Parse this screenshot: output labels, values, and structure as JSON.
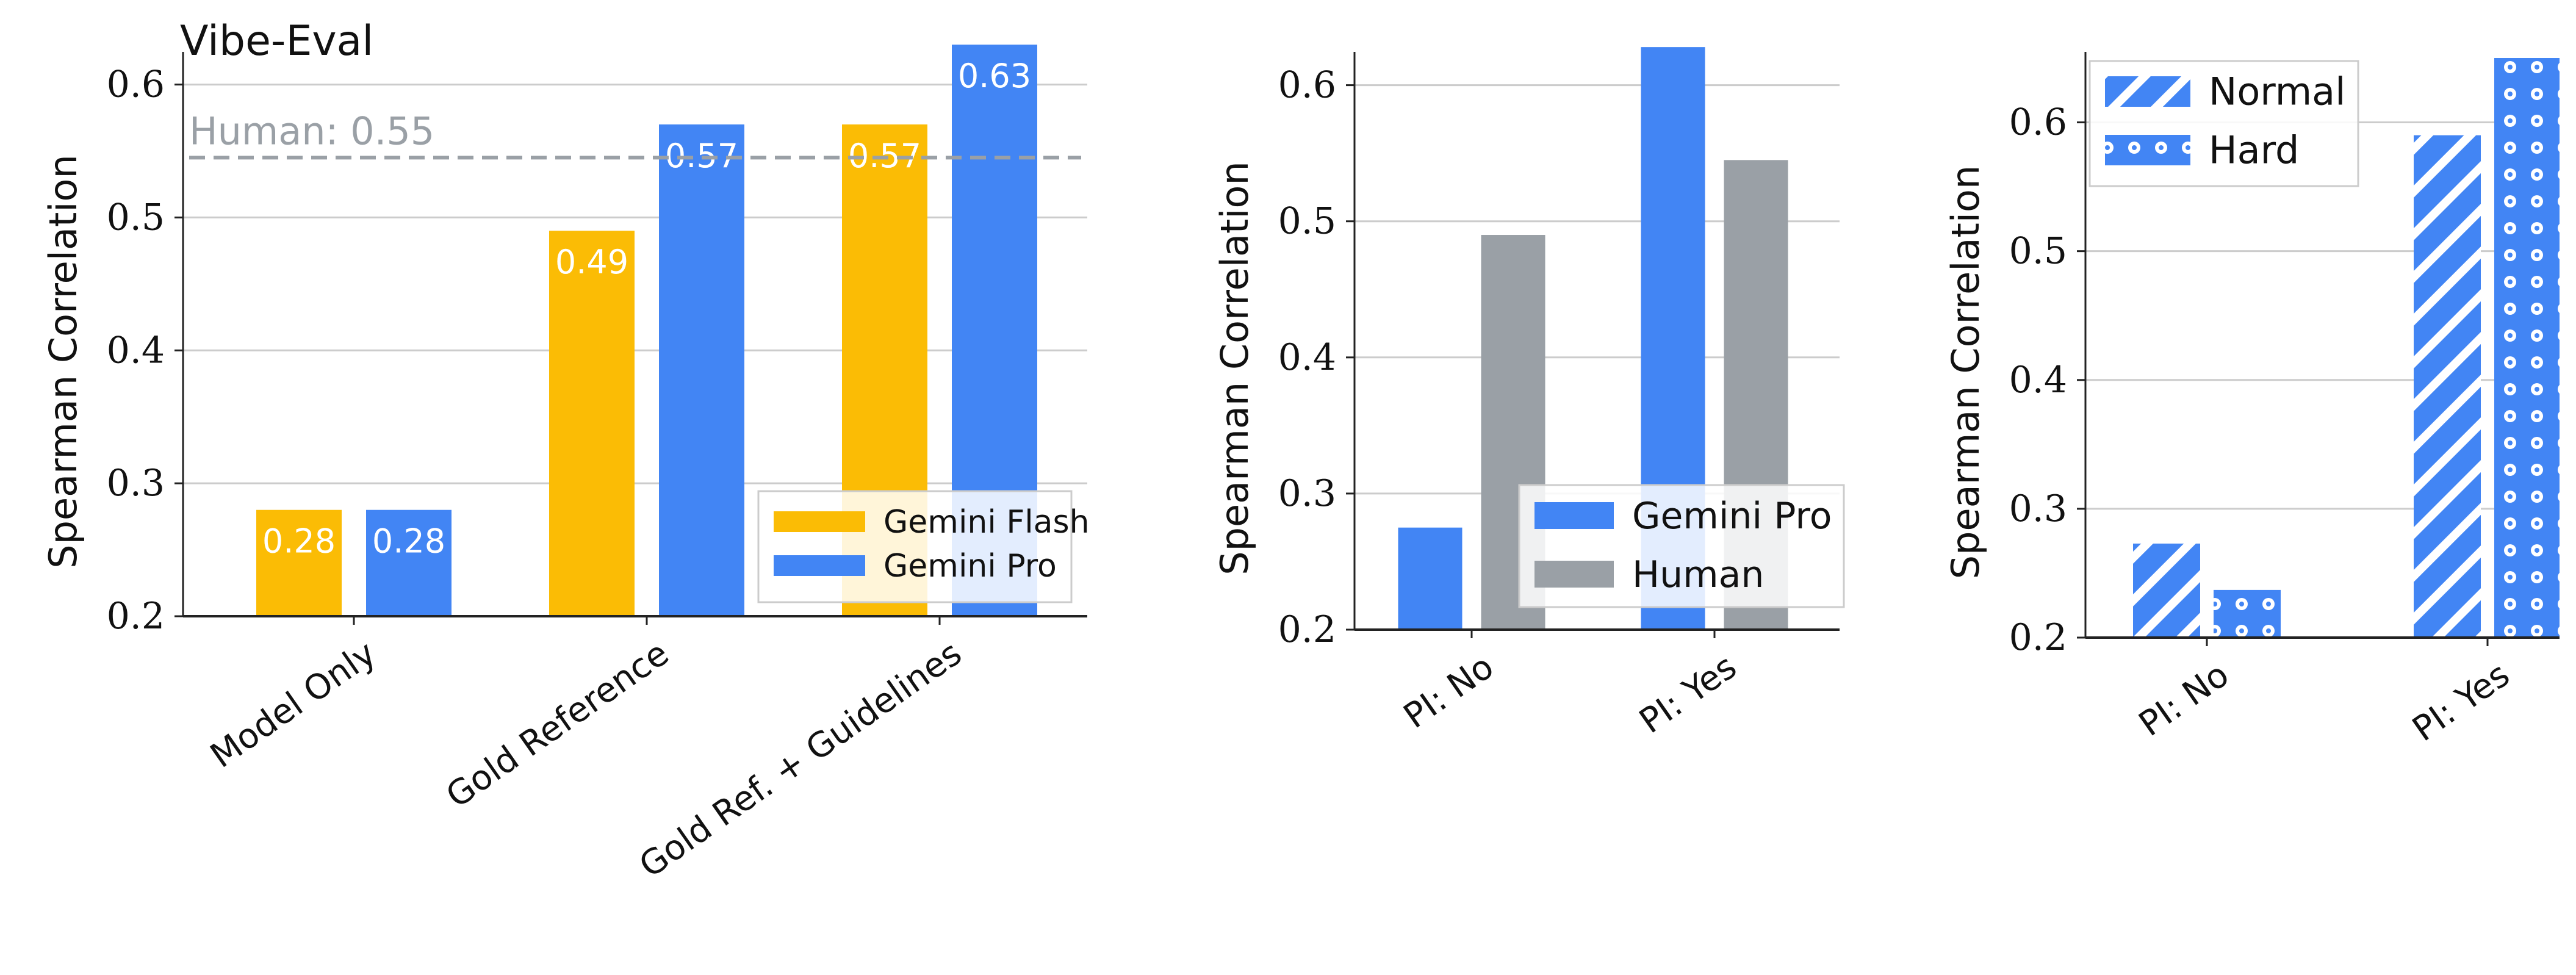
{
  "colors": {
    "flash": "#FBBC05",
    "pro": "#4285F4",
    "human": "#9AA0A6",
    "human_line": "#9AA0A6",
    "grid": "#CCCCCC",
    "axis": "#222222"
  },
  "chart_data": [
    {
      "type": "bar",
      "title": "Vibe-Eval",
      "ylabel": "Spearman Correlation",
      "xlabel": "",
      "ylim": [
        0.2,
        0.62
      ],
      "yticks": [
        "0.2",
        "0.3",
        "0.4",
        "0.5",
        "0.6"
      ],
      "grid": "horizontal",
      "categories": [
        "Model Only",
        "Gold Reference",
        "Gold Ref. + Guidelines"
      ],
      "series": [
        {
          "name": "Gemini Flash",
          "color": "#FBBC05",
          "values": [
            0.28,
            0.49,
            0.57
          ],
          "labels": [
            "0.28",
            "0.49",
            "0.57"
          ]
        },
        {
          "name": "Gemini Pro",
          "color": "#4285F4",
          "values": [
            0.28,
            0.57,
            0.63
          ],
          "labels": [
            "0.28",
            "0.57",
            "0.63"
          ]
        }
      ],
      "reference_line": {
        "value": 0.545,
        "label": "Human: 0.55"
      },
      "legend": "lower-right"
    },
    {
      "type": "bar",
      "title": "",
      "ylabel": "Spearman Correlation",
      "xlabel": "",
      "ylim": [
        0.2,
        0.62
      ],
      "yticks": [
        "0.2",
        "0.3",
        "0.4",
        "0.5",
        "0.6"
      ],
      "grid": "horizontal",
      "categories": [
        "PI: No",
        "PI: Yes"
      ],
      "series": [
        {
          "name": "Gemini Pro",
          "color": "#4285F4",
          "values": [
            0.275,
            0.628
          ]
        },
        {
          "name": "Human",
          "color": "#9AA0A6",
          "values": [
            0.49,
            0.545
          ]
        }
      ],
      "legend": "lower-right"
    },
    {
      "type": "bar",
      "title": "",
      "ylabel": "Spearman Correlation",
      "xlabel": "",
      "ylim": [
        0.2,
        0.65
      ],
      "yticks": [
        "0.2",
        "0.3",
        "0.4",
        "0.5",
        "0.6"
      ],
      "grid": "horizontal",
      "categories": [
        "PI: No",
        "PI: Yes"
      ],
      "series": [
        {
          "name": "Normal",
          "color": "#4285F4",
          "pattern": "hatch",
          "values": [
            0.273,
            0.59
          ]
        },
        {
          "name": "Hard",
          "color": "#4285F4",
          "pattern": "dots",
          "values": [
            0.237,
            0.65
          ]
        }
      ],
      "legend": "top-left"
    }
  ]
}
